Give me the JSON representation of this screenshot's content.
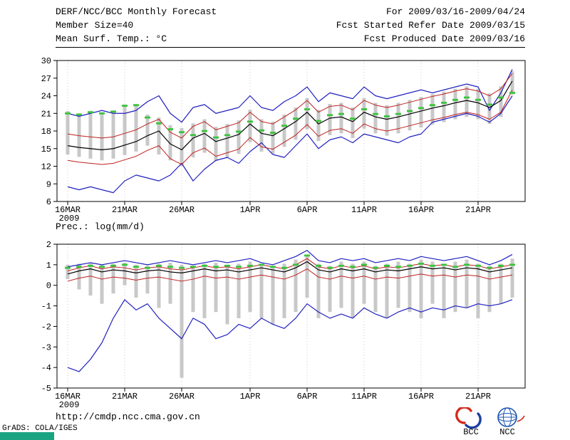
{
  "header": {
    "title": "DERF/NCC/BCC Monthly Forecast",
    "member_size": "Member Size=40",
    "var_label": "Mean Surf. Temp.: °C",
    "for_range": "For 2009/03/16-2009/04/24",
    "fcst_started": "Fcst Started Refer Date 2009/03/15",
    "fcst_produced": "Fcst Produced Date 2009/03/16"
  },
  "footer": {
    "url": "http://cmdp.ncc.cma.gov.cn",
    "grads_credit": "GrADS: COLA/IGES",
    "bcc_label": "BCC",
    "ncc_label": "NCC"
  },
  "colors": {
    "envelope_blue": "#2020c0",
    "quartile_red": "#c02020",
    "mean_black": "#000000",
    "observation_green": "#3bc43b",
    "spread_bar_gray": "#c8c8c8",
    "grads_teal": "#1aa380"
  },
  "chart_data": [
    {
      "type": "line",
      "name": "mean-surface-temperature",
      "title": "Mean Surf. Temp.: °C",
      "xlabel": "",
      "ylabel": "°C",
      "ylim": [
        6,
        30
      ],
      "yticks": [
        30,
        27,
        24,
        21,
        18,
        15,
        12,
        9,
        6
      ],
      "xticklabels": [
        "16MAR",
        "21MAR",
        "26MAR",
        "1APR",
        "6APR",
        "11APR",
        "16APR",
        "21APR"
      ],
      "xtick_positions": [
        0,
        5,
        10,
        16,
        21,
        26,
        31,
        36
      ],
      "x_year_label": "2009",
      "n_points": 40,
      "grid": "dotted-vertical",
      "legend": "none",
      "series": [
        {
          "name": "ensemble-max",
          "color": "#2020c0",
          "width": 1.2,
          "values": [
            21.0,
            20.5,
            21.0,
            21.5,
            21.0,
            21.0,
            21.5,
            23.0,
            24.0,
            21.0,
            19.5,
            22.0,
            22.5,
            21.0,
            21.5,
            22.0,
            24.0,
            22.0,
            21.5,
            23.0,
            24.0,
            25.5,
            23.0,
            24.5,
            24.0,
            23.5,
            25.5,
            24.0,
            23.5,
            24.0,
            24.5,
            25.0,
            24.5,
            25.0,
            25.5,
            26.0,
            25.5,
            21.5,
            24.5,
            28.5
          ]
        },
        {
          "name": "ensemble-min",
          "color": "#2020c0",
          "width": 1.2,
          "values": [
            8.5,
            8.0,
            8.5,
            8.0,
            7.5,
            9.5,
            10.5,
            10.0,
            9.5,
            10.5,
            12.5,
            9.5,
            11.5,
            13.0,
            13.5,
            12.5,
            14.5,
            16.0,
            14.0,
            13.5,
            15.5,
            17.5,
            15.0,
            16.5,
            17.0,
            16.0,
            17.5,
            17.0,
            16.5,
            16.0,
            17.0,
            17.5,
            19.5,
            20.0,
            20.5,
            21.0,
            20.5,
            19.5,
            21.0,
            24.0
          ]
        },
        {
          "name": "upper-quartile",
          "color": "#c02020",
          "width": 1,
          "values": [
            17.5,
            17.2,
            17.0,
            16.8,
            17.0,
            17.6,
            18.2,
            19.2,
            20.0,
            17.8,
            16.8,
            18.8,
            19.6,
            18.2,
            18.8,
            19.4,
            21.2,
            19.6,
            19.2,
            20.4,
            21.6,
            23.2,
            21.2,
            22.2,
            22.4,
            21.6,
            23.2,
            22.4,
            22.0,
            22.4,
            22.9,
            23.4,
            23.9,
            24.3,
            24.8,
            25.2,
            24.8,
            24.0,
            25.2,
            27.8
          ]
        },
        {
          "name": "lower-quartile",
          "color": "#c02020",
          "width": 1,
          "values": [
            13.0,
            12.7,
            12.5,
            12.3,
            12.5,
            13.1,
            13.7,
            14.7,
            15.5,
            13.3,
            12.3,
            14.3,
            15.1,
            13.7,
            14.3,
            14.9,
            16.9,
            15.3,
            14.9,
            16.1,
            17.3,
            19.1,
            17.1,
            18.1,
            18.4,
            17.6,
            19.2,
            18.4,
            18.0,
            18.4,
            18.9,
            19.4,
            19.9,
            20.3,
            20.8,
            21.2,
            20.8,
            20.0,
            21.2,
            25.0
          ]
        },
        {
          "name": "ensemble-mean",
          "color": "#000000",
          "width": 1.2,
          "values": [
            15.5,
            15.2,
            15.0,
            14.8,
            15.0,
            15.6,
            16.2,
            17.2,
            18.0,
            15.8,
            14.8,
            16.8,
            17.6,
            16.2,
            16.8,
            17.4,
            19.2,
            17.6,
            17.2,
            18.4,
            19.6,
            21.2,
            19.2,
            20.2,
            20.4,
            19.6,
            21.2,
            20.4,
            20.0,
            20.4,
            20.9,
            21.4,
            21.9,
            22.3,
            22.8,
            23.2,
            22.8,
            22.0,
            23.2,
            26.5
          ]
        },
        {
          "name": "observation",
          "color": "#3bc43b",
          "style": "dash-marker",
          "values": [
            21.0,
            20.8,
            21.2,
            21.0,
            21.3,
            22.3,
            22.4,
            20.3,
            19.3,
            18.3,
            17.8,
            17.3,
            18.0,
            16.9,
            17.3,
            17.9,
            19.6,
            18.1,
            17.7,
            18.9,
            20.1,
            21.7,
            19.7,
            20.7,
            20.9,
            20.1,
            21.7,
            20.9,
            20.5,
            20.9,
            21.4,
            21.9,
            22.4,
            22.8,
            23.3,
            23.7,
            23.3,
            22.5,
            23.7,
            24.5
          ]
        }
      ],
      "bars": {
        "name": "ensemble-spread",
        "color": "#c8c8c8",
        "high": [
          21.4,
          21.0,
          21.4,
          21.2,
          21.5,
          22.5,
          22.6,
          20.8,
          20.3,
          19.0,
          18.5,
          19.3,
          20.0,
          18.7,
          19.2,
          19.8,
          21.6,
          20.0,
          19.6,
          20.8,
          22.0,
          23.6,
          21.6,
          22.6,
          22.8,
          22.0,
          23.6,
          22.8,
          22.4,
          22.8,
          23.3,
          23.8,
          24.3,
          24.7,
          25.2,
          25.6,
          25.2,
          24.4,
          25.6,
          28.2
        ],
        "low": [
          14.0,
          13.6,
          13.3,
          13.0,
          13.3,
          13.9,
          14.5,
          15.5,
          14.0,
          13.0,
          12.0,
          13.5,
          14.3,
          12.9,
          13.5,
          14.1,
          16.1,
          14.5,
          14.1,
          15.3,
          16.5,
          18.3,
          16.3,
          17.3,
          17.6,
          16.8,
          18.4,
          17.6,
          17.2,
          17.6,
          18.1,
          18.6,
          19.1,
          19.5,
          20.0,
          20.4,
          20.0,
          19.2,
          20.4,
          24.2
        ]
      }
    },
    {
      "type": "line",
      "name": "precipitation",
      "title": "Prec.: log(mm/d)",
      "xlabel": "",
      "ylabel": "log(mm/d)",
      "ylim": [
        -5,
        2
      ],
      "yticks": [
        2,
        1,
        0,
        -1,
        -2,
        -3,
        -4,
        -5
      ],
      "xticklabels": [
        "16MAR",
        "21MAR",
        "26MAR",
        "1APR",
        "6APR",
        "11APR",
        "16APR",
        "21APR"
      ],
      "xtick_positions": [
        0,
        5,
        10,
        16,
        21,
        26,
        31,
        36
      ],
      "x_year_label": "2009",
      "n_points": 40,
      "grid": "dotted-vertical",
      "legend": "none",
      "series": [
        {
          "name": "ensemble-max",
          "color": "#2020c0",
          "width": 1.2,
          "values": [
            0.9,
            1.0,
            1.1,
            1.0,
            1.1,
            1.2,
            1.1,
            1.0,
            1.1,
            1.2,
            1.1,
            1.0,
            1.1,
            1.2,
            1.1,
            1.2,
            1.3,
            1.1,
            1.0,
            1.2,
            1.4,
            1.7,
            1.2,
            1.1,
            1.3,
            1.2,
            1.3,
            1.1,
            1.2,
            1.3,
            1.2,
            1.4,
            1.3,
            1.2,
            1.3,
            1.4,
            1.2,
            1.0,
            1.2,
            1.5
          ]
        },
        {
          "name": "ensemble-min",
          "color": "#2020c0",
          "width": 1.2,
          "values": [
            -4.0,
            -4.2,
            -3.6,
            -2.8,
            -1.6,
            -0.7,
            -1.2,
            -0.9,
            -1.6,
            -2.1,
            -2.6,
            -1.6,
            -1.9,
            -2.6,
            -2.4,
            -1.9,
            -2.1,
            -1.6,
            -1.9,
            -2.1,
            -1.6,
            -0.9,
            -1.3,
            -1.6,
            -1.4,
            -1.6,
            -1.1,
            -1.4,
            -1.6,
            -1.3,
            -1.1,
            -1.3,
            -1.1,
            -1.2,
            -1.0,
            -1.1,
            -0.9,
            -1.0,
            -0.9,
            -0.7
          ]
        },
        {
          "name": "upper-quartile",
          "color": "#c02020",
          "width": 1,
          "values": [
            0.7,
            0.85,
            0.95,
            0.8,
            0.9,
            0.85,
            0.75,
            0.85,
            0.9,
            0.8,
            0.75,
            0.85,
            0.95,
            0.85,
            0.9,
            0.8,
            0.9,
            1.0,
            0.9,
            0.8,
            1.0,
            1.3,
            0.9,
            0.8,
            0.95,
            0.85,
            0.95,
            0.8,
            0.9,
            0.85,
            0.95,
            1.05,
            0.95,
            1.0,
            0.9,
            1.0,
            0.95,
            0.8,
            0.9,
            1.0
          ]
        },
        {
          "name": "lower-quartile",
          "color": "#c02020",
          "width": 1,
          "values": [
            0.2,
            0.35,
            0.45,
            0.3,
            0.4,
            0.35,
            0.25,
            0.35,
            0.4,
            0.3,
            0.2,
            0.3,
            0.45,
            0.35,
            0.4,
            0.3,
            0.4,
            0.5,
            0.4,
            0.3,
            0.5,
            0.8,
            0.4,
            0.3,
            0.45,
            0.35,
            0.45,
            0.3,
            0.4,
            0.35,
            0.45,
            0.55,
            0.45,
            0.5,
            0.4,
            0.5,
            0.45,
            0.3,
            0.4,
            0.5
          ]
        },
        {
          "name": "ensemble-mean",
          "color": "#000000",
          "width": 1.2,
          "values": [
            0.55,
            0.7,
            0.8,
            0.65,
            0.75,
            0.7,
            0.6,
            0.7,
            0.75,
            0.65,
            0.6,
            0.7,
            0.8,
            0.7,
            0.75,
            0.65,
            0.75,
            0.85,
            0.75,
            0.65,
            0.85,
            1.15,
            0.75,
            0.65,
            0.8,
            0.7,
            0.8,
            0.65,
            0.75,
            0.7,
            0.8,
            0.9,
            0.8,
            0.85,
            0.75,
            0.85,
            0.8,
            0.65,
            0.75,
            0.85
          ]
        },
        {
          "name": "observation",
          "color": "#3bc43b",
          "style": "dash-marker",
          "values": [
            0.85,
            0.9,
            0.95,
            0.9,
            0.95,
            1.0,
            0.9,
            0.85,
            0.95,
            0.9,
            0.85,
            0.9,
            0.95,
            0.9,
            0.95,
            0.9,
            0.95,
            1.0,
            0.9,
            0.85,
            1.0,
            1.45,
            0.95,
            0.85,
            0.95,
            0.9,
            1.0,
            0.85,
            0.95,
            0.9,
            0.95,
            1.05,
            0.95,
            1.0,
            0.9,
            1.0,
            0.95,
            0.85,
            0.95,
            1.0
          ]
        }
      ],
      "bars": {
        "name": "ensemble-spread",
        "color": "#c8c8c8",
        "high": [
          1.0,
          1.05,
          1.1,
          1.0,
          1.05,
          1.1,
          1.0,
          0.95,
          1.05,
          1.1,
          1.0,
          0.95,
          1.05,
          1.1,
          1.0,
          1.05,
          1.15,
          1.05,
          0.95,
          1.05,
          1.25,
          1.5,
          1.05,
          0.95,
          1.15,
          1.05,
          1.15,
          0.95,
          1.05,
          1.15,
          1.05,
          1.25,
          1.15,
          1.05,
          1.15,
          1.25,
          1.05,
          0.95,
          1.05,
          1.3
        ],
        "low": [
          0.3,
          -0.2,
          -0.5,
          -0.9,
          -0.4,
          0.0,
          -0.6,
          -0.4,
          -1.1,
          -0.9,
          -4.5,
          -1.3,
          -1.6,
          -1.3,
          -1.9,
          -1.6,
          -1.3,
          -1.6,
          -1.9,
          -1.6,
          -1.3,
          -0.6,
          -1.6,
          -1.3,
          -1.1,
          -1.6,
          -0.9,
          -1.3,
          -1.6,
          -1.1,
          -1.3,
          -1.6,
          -0.9,
          -1.6,
          -1.3,
          -1.1,
          -1.6,
          -1.3,
          -0.9,
          -0.6
        ]
      }
    }
  ]
}
